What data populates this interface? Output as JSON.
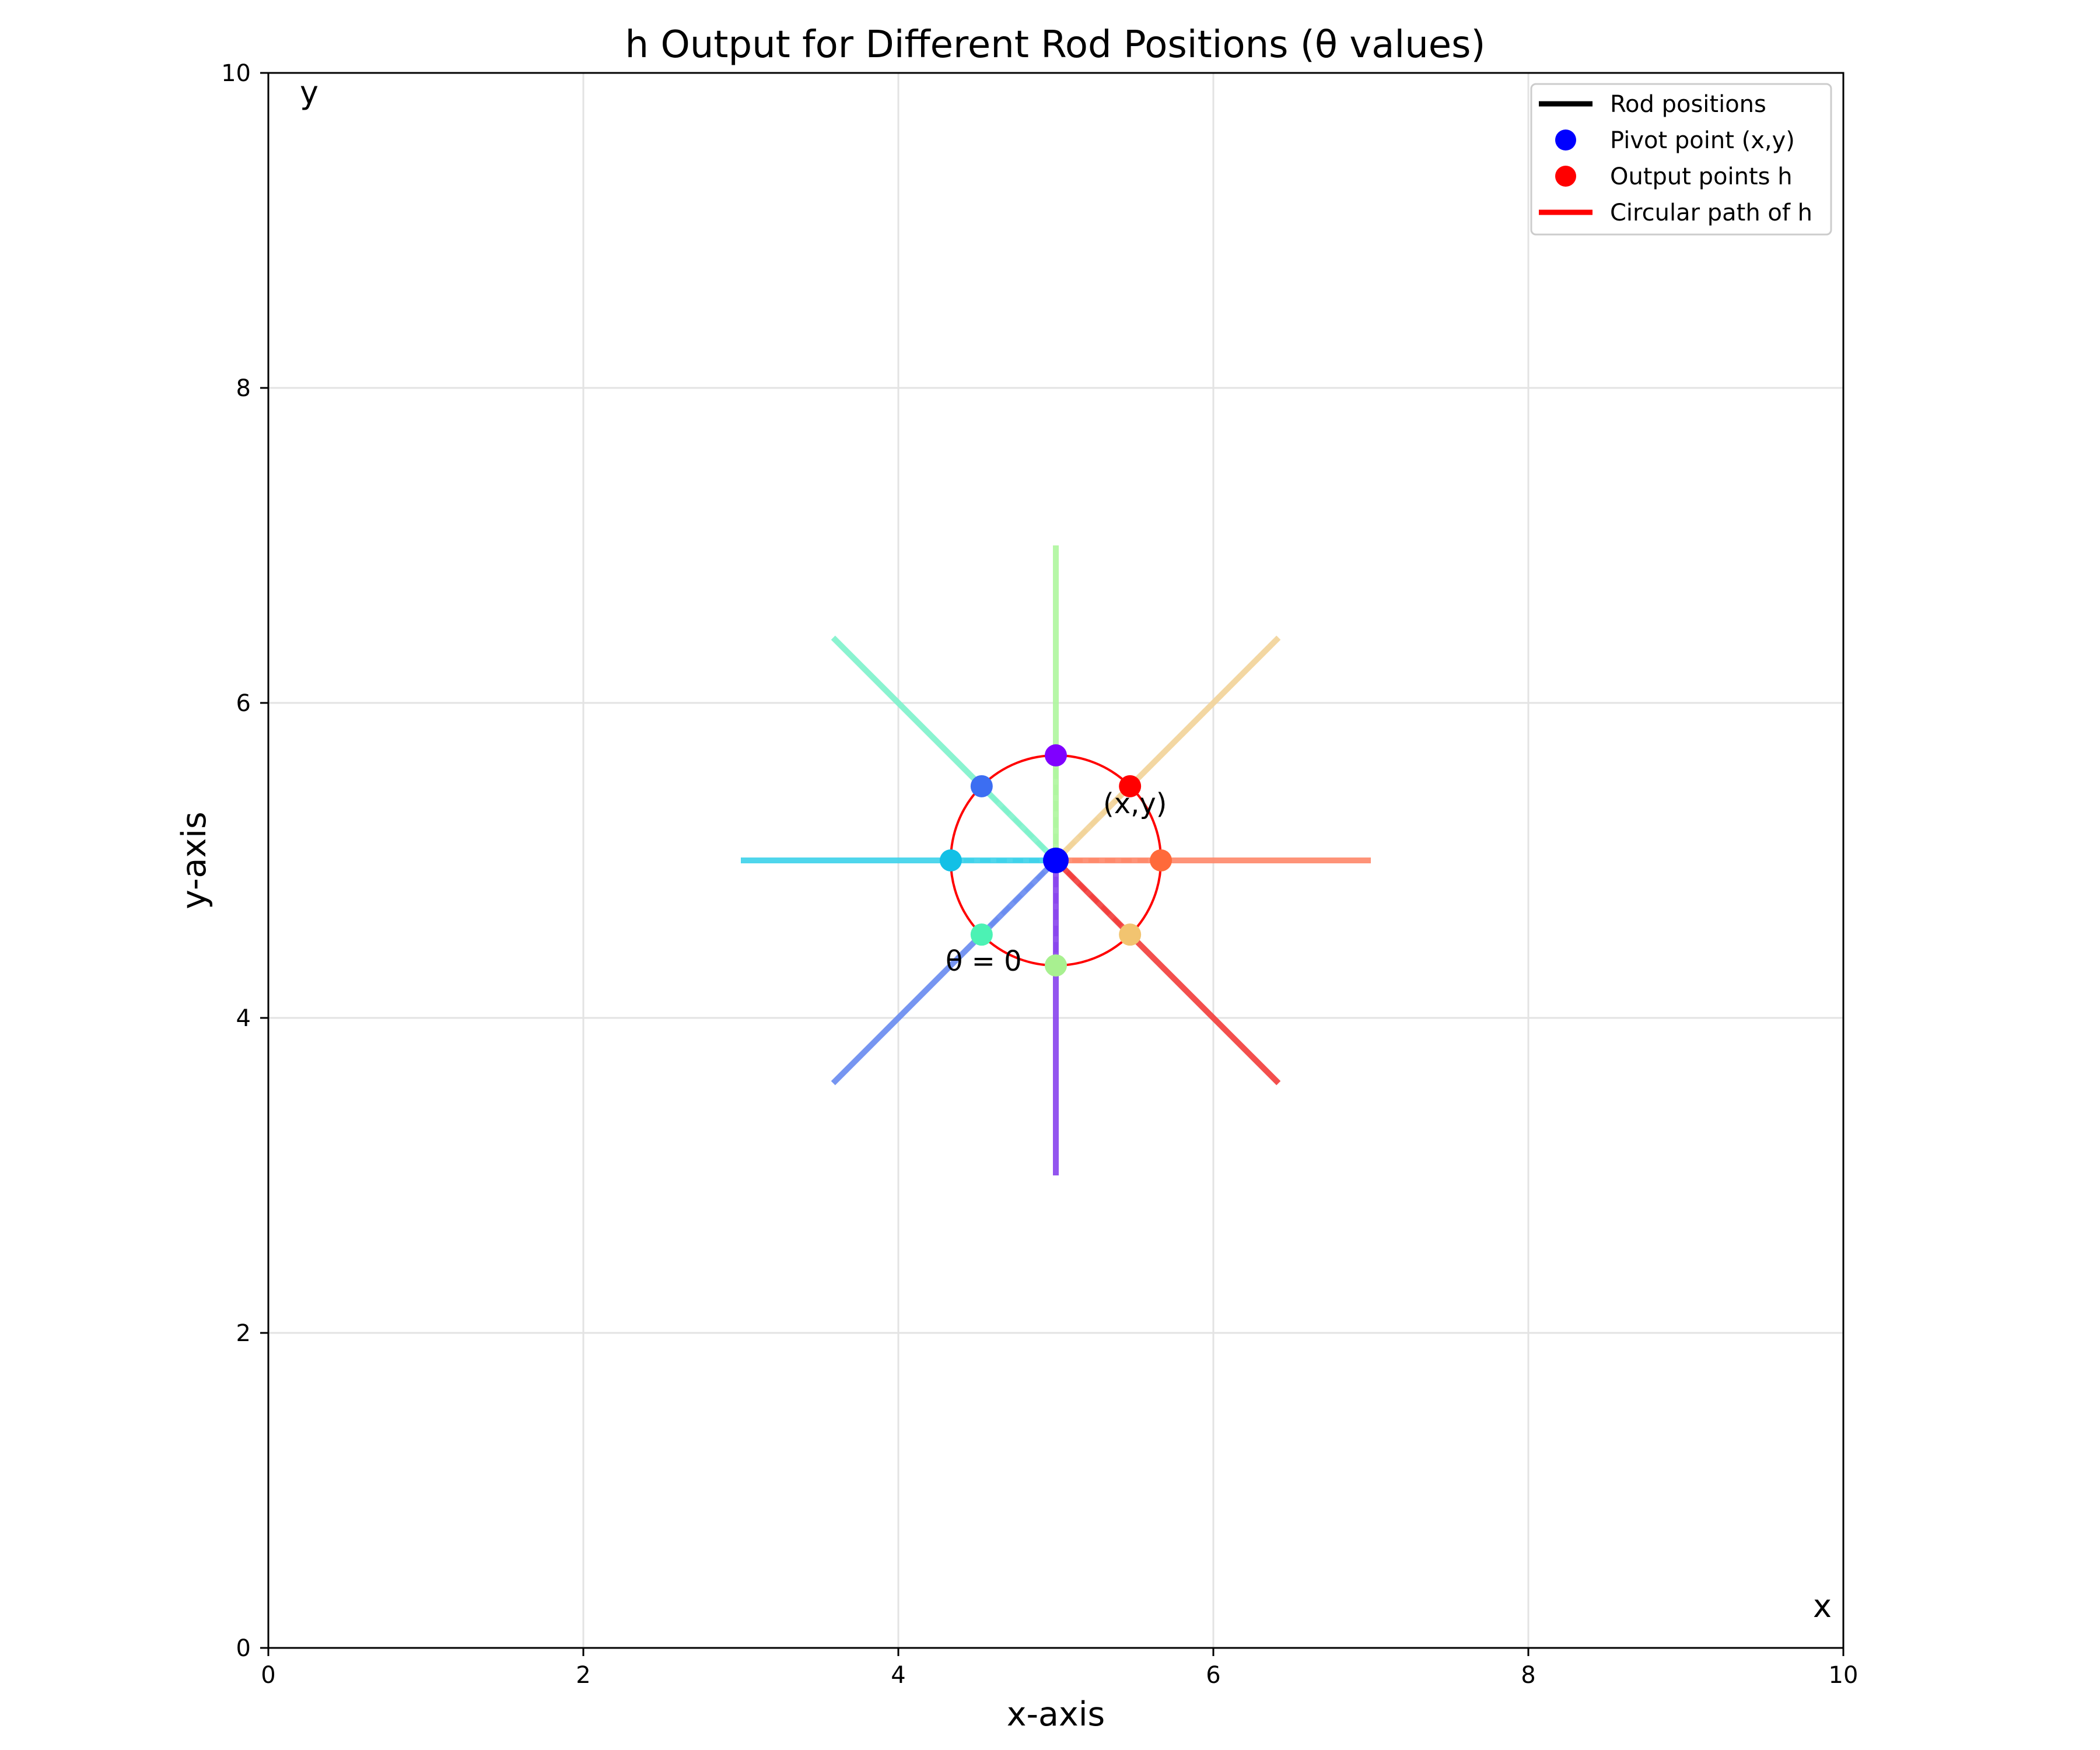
{
  "chart_data": {
    "type": "scatter",
    "title": "h Output for Different Rod Positions (θ values)",
    "xlabel": "x-axis",
    "ylabel": "y-axis",
    "xlim": [
      0,
      10
    ],
    "ylim": [
      0,
      10
    ],
    "xticks": [
      0,
      2,
      4,
      6,
      8,
      10
    ],
    "yticks": [
      0,
      2,
      4,
      6,
      8,
      10
    ],
    "grid": true,
    "legend_position": "top-right",
    "legend": [
      {
        "label": "Rod positions",
        "kind": "line",
        "color": "#000000"
      },
      {
        "label": "Pivot point (x,y)",
        "kind": "marker",
        "color": "#0000ff"
      },
      {
        "label": "Output points h",
        "kind": "marker",
        "color": "#ff0000"
      },
      {
        "label": "Circular path of h",
        "kind": "line",
        "color": "#ff0000"
      }
    ],
    "pivot": {
      "x": 5,
      "y": 5,
      "color": "#0000ff"
    },
    "circle": {
      "center": [
        5,
        5
      ],
      "radius": 0.667,
      "color": "#ff0000"
    },
    "rods": [
      {
        "theta_deg": 0,
        "x1": 5,
        "y1": 5,
        "x2": 5,
        "y2": 3,
        "color": "#8a46ee"
      },
      {
        "theta_deg": 45,
        "x1": 5,
        "y1": 5,
        "x2": 3.586,
        "y2": 3.586,
        "color": "#6a8cf0"
      },
      {
        "theta_deg": 90,
        "x1": 5,
        "y1": 5,
        "x2": 3,
        "y2": 5,
        "color": "#40d2ea"
      },
      {
        "theta_deg": 135,
        "x1": 5,
        "y1": 5,
        "x2": 3.586,
        "y2": 6.414,
        "color": "#80f2cc"
      },
      {
        "theta_deg": 180,
        "x1": 5,
        "y1": 5,
        "x2": 5,
        "y2": 7,
        "color": "#b0f6a0"
      },
      {
        "theta_deg": 225,
        "x1": 5,
        "y1": 5,
        "x2": 6.414,
        "y2": 6.414,
        "color": "#f2d49a"
      },
      {
        "theta_deg": 270,
        "x1": 5,
        "y1": 5,
        "x2": 7,
        "y2": 5,
        "color": "#fe8a6c"
      },
      {
        "theta_deg": 315,
        "x1": 5,
        "y1": 5,
        "x2": 6.414,
        "y2": 3.586,
        "color": "#f2403e"
      }
    ],
    "output_points": [
      {
        "x": 5.0,
        "y": 5.667,
        "color": "#8000ff"
      },
      {
        "x": 4.529,
        "y": 5.471,
        "color": "#3c6ef2"
      },
      {
        "x": 4.333,
        "y": 5.0,
        "color": "#12c0e6"
      },
      {
        "x": 4.529,
        "y": 4.529,
        "color": "#4cf2b4"
      },
      {
        "x": 5.0,
        "y": 4.333,
        "color": "#a8f090"
      },
      {
        "x": 5.471,
        "y": 4.529,
        "color": "#f2c470"
      },
      {
        "x": 5.667,
        "y": 5.0,
        "color": "#ff6a3a"
      },
      {
        "x": 5.471,
        "y": 5.471,
        "color": "#ff0000"
      }
    ],
    "annotations": [
      {
        "text": "(x,y)",
        "x": 5.3,
        "y": 5.3
      },
      {
        "text": "θ = 0",
        "x": 4.3,
        "y": 4.3
      }
    ],
    "corner_labels": {
      "x": "x",
      "y": "y"
    }
  }
}
